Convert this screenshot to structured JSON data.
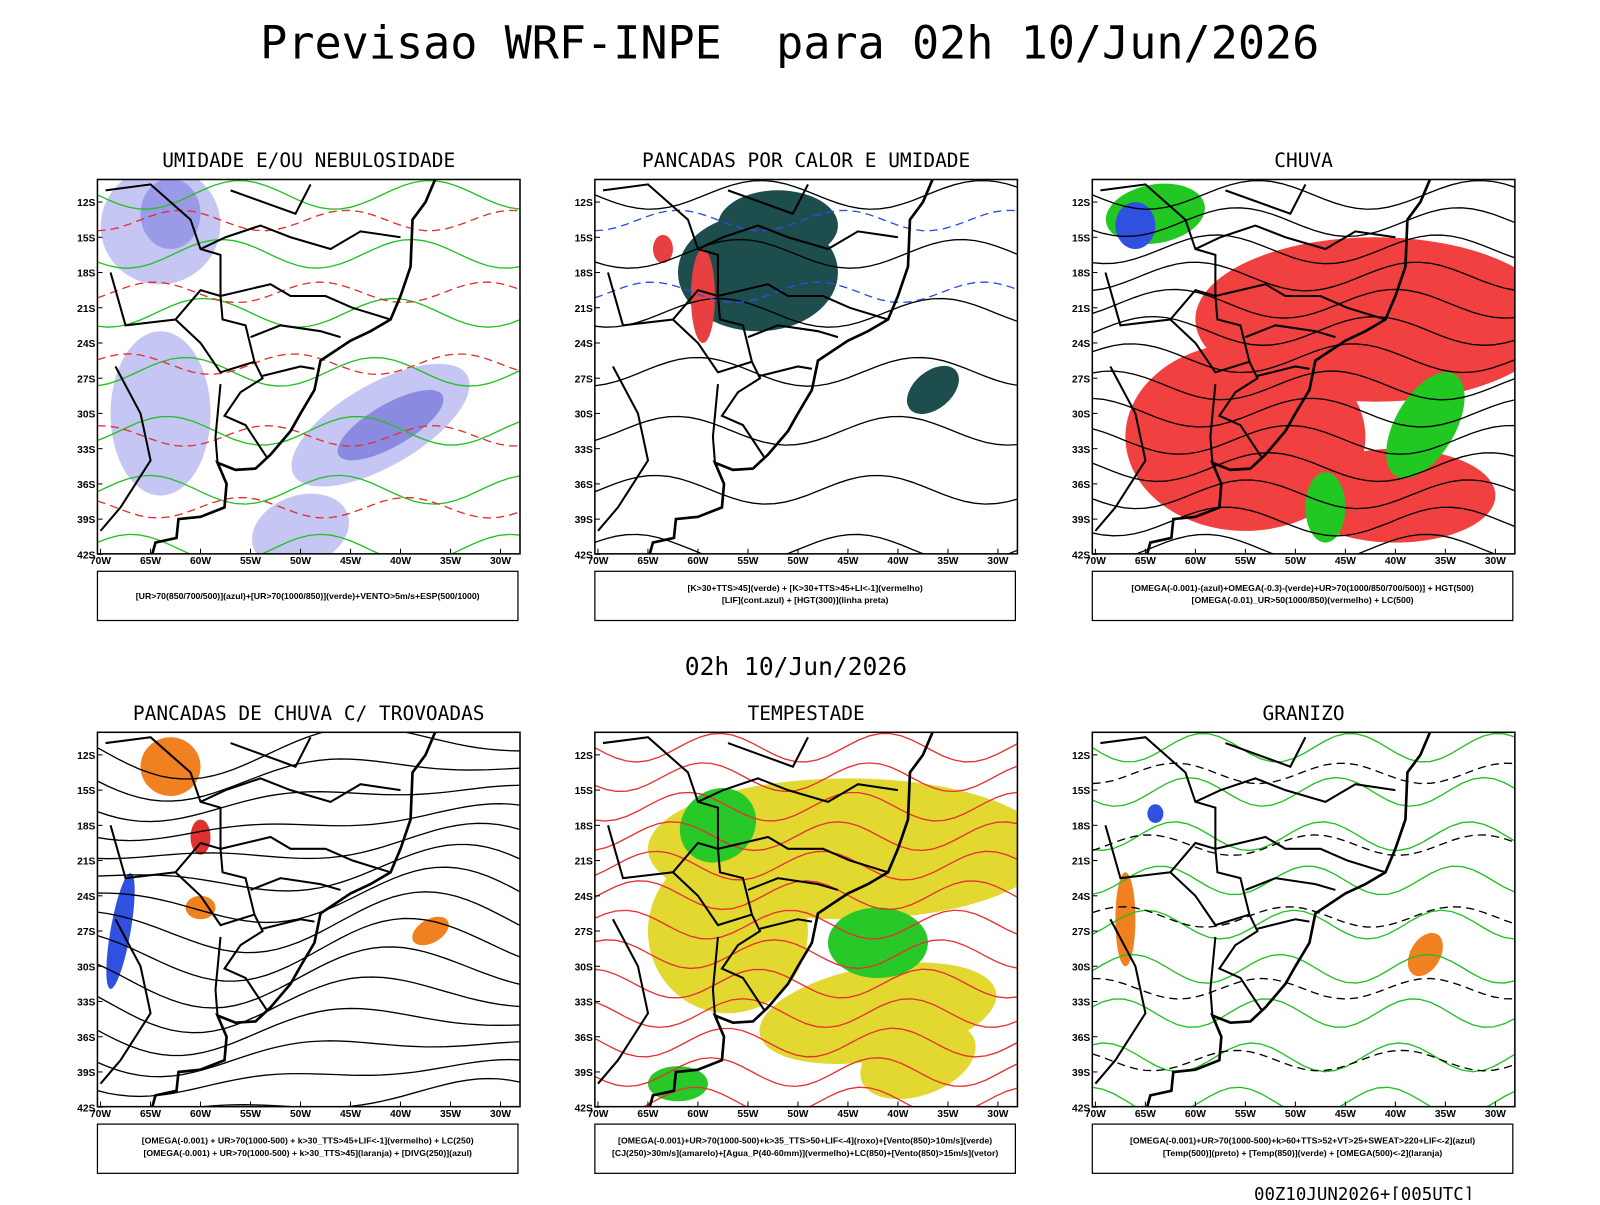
{
  "header": {
    "title": "Previsao WRF-INPE  para 02h 10/Jun/2026",
    "subtitle": "02h 10/Jun/2026",
    "footer": "00Z10JUN2026+[005UTC]"
  },
  "axes": {
    "lat_labels": [
      "12S",
      "15S",
      "18S",
      "21S",
      "24S",
      "27S",
      "30S",
      "33S",
      "36S",
      "39S",
      "42S"
    ],
    "lon_labels": [
      "70W",
      "65W",
      "60W",
      "55W",
      "50W",
      "45W",
      "40W",
      "35W",
      "30W"
    ]
  },
  "panels": [
    {
      "title": "UMIDADE E/OU NEBULOSIDADE",
      "legend": [
        "[UR>70(850/700/500)](azul)+[UR>70(1000/850)](verde)+VENTO>5m/s+ESP(500/1000)"
      ]
    },
    {
      "title": "PANCADAS POR CALOR E UMIDADE",
      "legend": [
        "[K>30+TTS>45](verde) + [K>30+TTS>45+LI<-1](vermelho)",
        "[LIF](cont.azul) + [HGT(300)](linha preta)"
      ]
    },
    {
      "title": "CHUVA",
      "legend": [
        "[OMEGA(-0.001)-(azul)+OMEGA(-0.3)-(verde)+UR>70(1000/850/700/500)] + HGT(500)",
        "[OMEGA(-0.01)_UR>50(1000/850)(vermelho) + LC(500)"
      ]
    },
    {
      "title": "PANCADAS DE CHUVA C/ TROVOADAS",
      "legend": [
        "[OMEGA(-0.001) + UR>70(1000-500) + k>30_TTS>45+LIF<-1](vermelho) + LC(250)",
        "[OMEGA(-0.001) + UR>70(1000-500) + k>30_TTS>45](laranja) + [DIVG(250)](azul)"
      ]
    },
    {
      "title": "TEMPESTADE",
      "legend": [
        "[OMEGA(-0.001)+UR>70(1000-500)+k>35_TTS>50+LIF<-4](roxo)+[Vento(850)>10m/s](verde)",
        "[CJ(250)>30m/s](amarelo)+[Agua_P(40-60mm)](vermelho)+LC(850)+[Vento(850)>15m/s](vetor)"
      ]
    },
    {
      "title": "GRANIZO",
      "legend": [
        "[OMEGA(-0.001)+UR>70(1000-500)+k>60+TTS>52+VT>25+SWEAT>220+LIF<-2](azul)",
        "[Temp(500)](preto) + [Temp(850)](verde) + [OMEGA(500)<-2](laranja)"
      ]
    }
  ]
}
